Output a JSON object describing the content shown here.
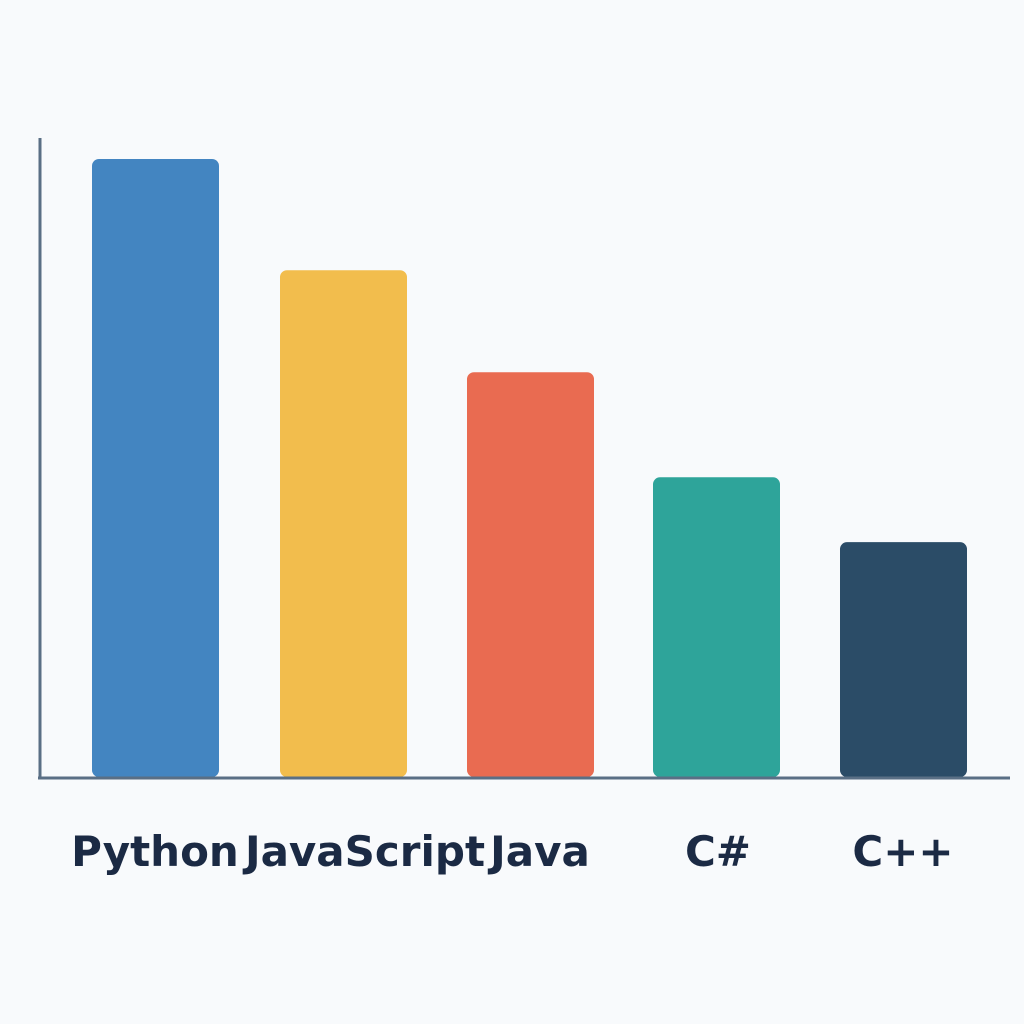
{
  "chart_data": {
    "type": "bar",
    "title": "",
    "xlabel": "",
    "ylabel": "",
    "categories": [
      "Python",
      "JavaScript",
      "Java",
      "C#",
      "C++"
    ],
    "values": [
      100,
      82,
      65.5,
      48.5,
      38
    ],
    "ylim": [
      0,
      100
    ],
    "grid": false,
    "legend": "none",
    "colors": [
      "#4385c1",
      "#f2bd4d",
      "#e96b51",
      "#2ea49a",
      "#2b4c67"
    ],
    "axis_color": "#5a6f85",
    "label_color": "#1b2a44"
  }
}
